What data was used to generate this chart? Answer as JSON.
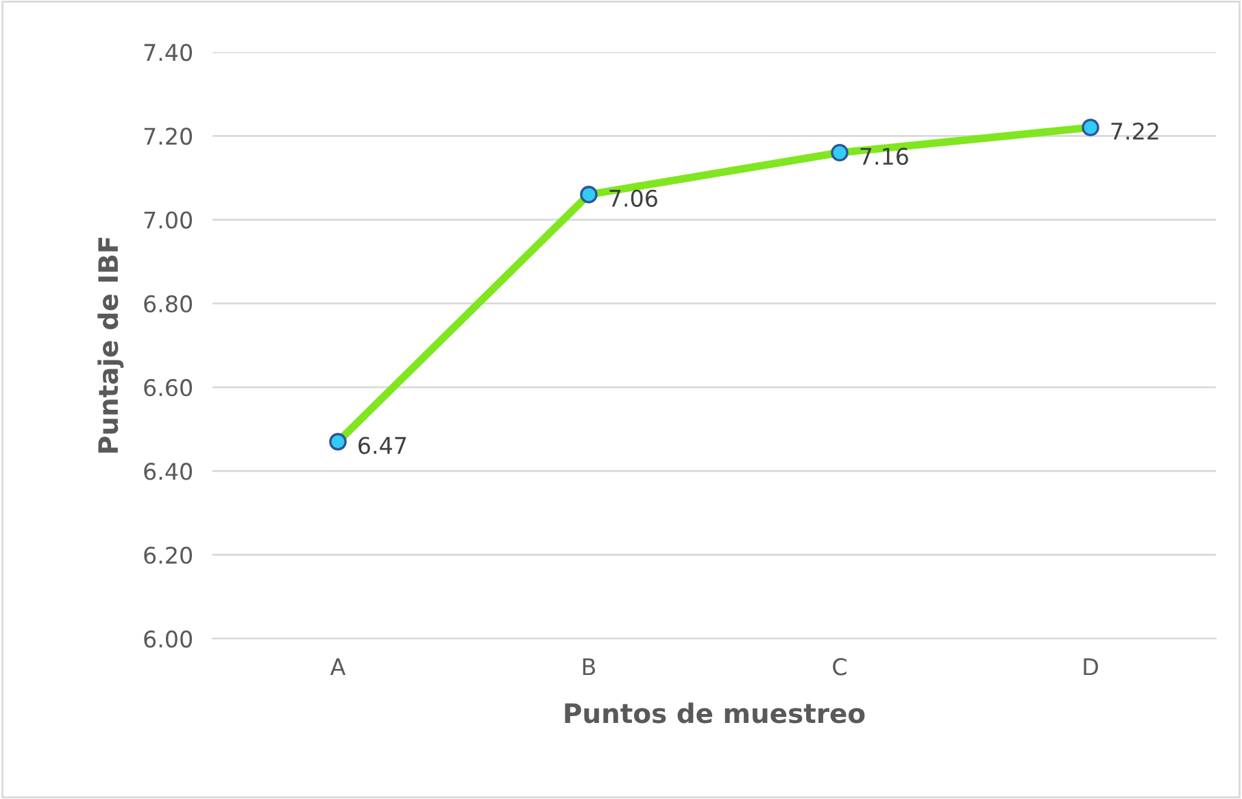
{
  "chart_data": {
    "type": "line",
    "xlabel": "Puntos de muestreo",
    "ylabel": "Puntaje de IBF",
    "categories": [
      "A",
      "B",
      "C",
      "D"
    ],
    "series": [
      {
        "color": "#80e620",
        "values": [
          6.47,
          7.06,
          7.16,
          7.22
        ]
      }
    ],
    "ylim": [
      6.0,
      7.4
    ],
    "yticks": [
      {
        "value": 6.0,
        "label": "6.00"
      },
      {
        "value": 6.2,
        "label": "6.20"
      },
      {
        "value": 6.4,
        "label": "6.40"
      },
      {
        "value": 6.6,
        "label": "6.60"
      },
      {
        "value": 6.8,
        "label": "6.80"
      },
      {
        "value": 7.0,
        "label": "7.00"
      },
      {
        "value": 7.2,
        "label": "7.20"
      },
      {
        "value": 7.4,
        "label": "7.40"
      }
    ],
    "grid": "y",
    "marker": "circle",
    "line_style": "solid",
    "data_labels": true
  }
}
